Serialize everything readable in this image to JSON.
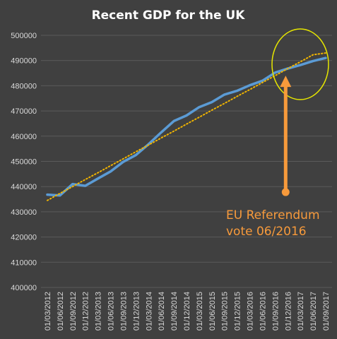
{
  "chart_data": {
    "type": "line",
    "title": "Recent GDP for the UK",
    "xlabel": "",
    "ylabel": "",
    "ylim": [
      400000,
      500000
    ],
    "yticks": [
      400000,
      410000,
      420000,
      430000,
      440000,
      450000,
      460000,
      470000,
      480000,
      490000,
      500000
    ],
    "categories": [
      "01/03/2012",
      "01/06/2012",
      "01/09/2012",
      "01/12/2012",
      "01/03/2013",
      "01/06/2013",
      "01/09/2013",
      "01/12/2013",
      "01/03/2014",
      "01/06/2014",
      "01/09/2014",
      "01/12/2014",
      "01/03/2015",
      "01/06/2015",
      "01/09/2015",
      "01/12/2015",
      "01/03/2016",
      "01/06/2016",
      "01/09/2016",
      "01/12/2016",
      "01/03/2017",
      "01/06/2017",
      "01/09/2017"
    ],
    "series": [
      {
        "name": "",
        "style": "solid",
        "color": "#5b9bd5",
        "values": [
          436800,
          436500,
          441000,
          440300,
          443200,
          446000,
          449800,
          452500,
          456800,
          461500,
          466000,
          468200,
          471500,
          473500,
          476500,
          478000,
          480200,
          482000,
          485200,
          486800,
          488200,
          489800,
          491000
        ]
      },
      {
        "name": "",
        "style": "dotted-trendline",
        "color": "#f0b400",
        "values": [
          434500,
          437300,
          440000,
          442800,
          445500,
          448300,
          451000,
          453800,
          456500,
          459300,
          462000,
          464800,
          467500,
          470300,
          473000,
          475800,
          478500,
          481300,
          484000,
          486800,
          489500,
          492300,
          493000
        ]
      }
    ],
    "annotation": {
      "lines": [
        "EU Referendum",
        "vote 06/2016"
      ],
      "color": "#f79a3b",
      "circle_color": "#e6e600",
      "target_category": "01/12/2016",
      "arrow_from_value": 437800,
      "arrow_to_value": 484000
    },
    "grid": true,
    "legend": "none",
    "colors": {
      "background": "#404040",
      "grid": "#5a5a5a",
      "text": "#d9d9d9",
      "title": "#ffffff"
    }
  }
}
